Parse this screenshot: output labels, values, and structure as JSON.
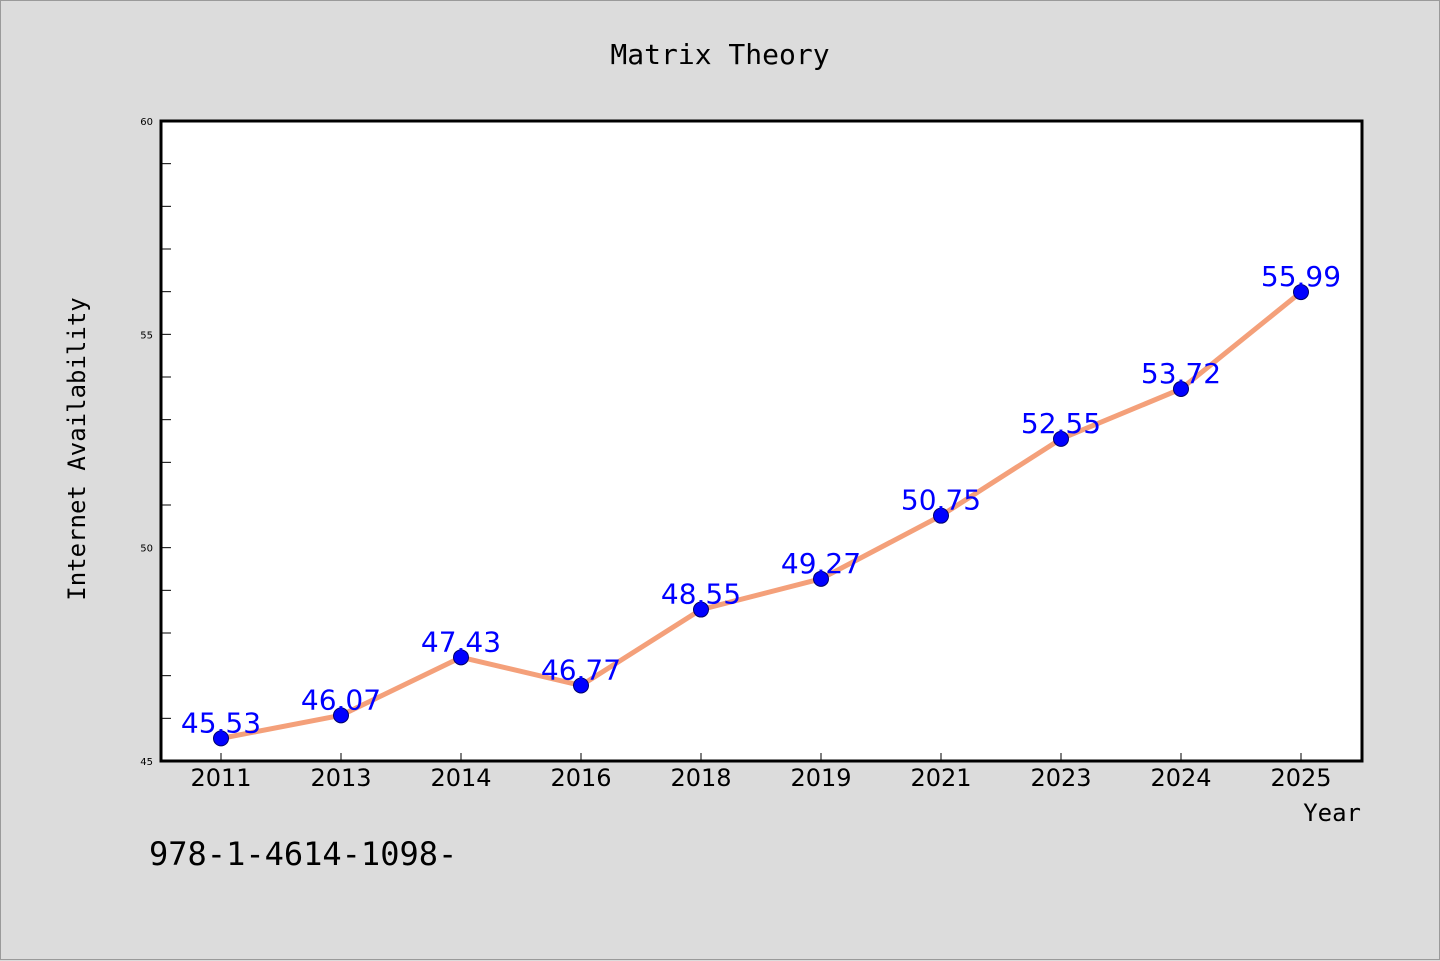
{
  "chart_data": {
    "type": "line",
    "title": "Matrix Theory",
    "xlabel": "Year",
    "ylabel": "Internet Availability",
    "footnote": "978-1-4614-1098-",
    "categories": [
      "2011",
      "2013",
      "2014",
      "2016",
      "2018",
      "2019",
      "2021",
      "2023",
      "2024",
      "2025"
    ],
    "values": [
      45.53,
      46.07,
      47.43,
      46.77,
      48.55,
      49.27,
      50.75,
      52.55,
      53.72,
      55.99
    ],
    "labels": [
      "45.53",
      "46.07",
      "47.43",
      "46.77",
      "48.55",
      "49.27",
      "50.75",
      "52.55",
      "53.72",
      "55.99"
    ],
    "ylim": [
      45,
      60
    ],
    "yticks": [
      "45",
      "50",
      "55",
      "60"
    ],
    "grid": false,
    "colors": {
      "line": "#f4a07a",
      "marker": "#0000ff",
      "label": "#0000ff",
      "background": "#dcdcdc",
      "plot_background": "#ffffff"
    }
  }
}
